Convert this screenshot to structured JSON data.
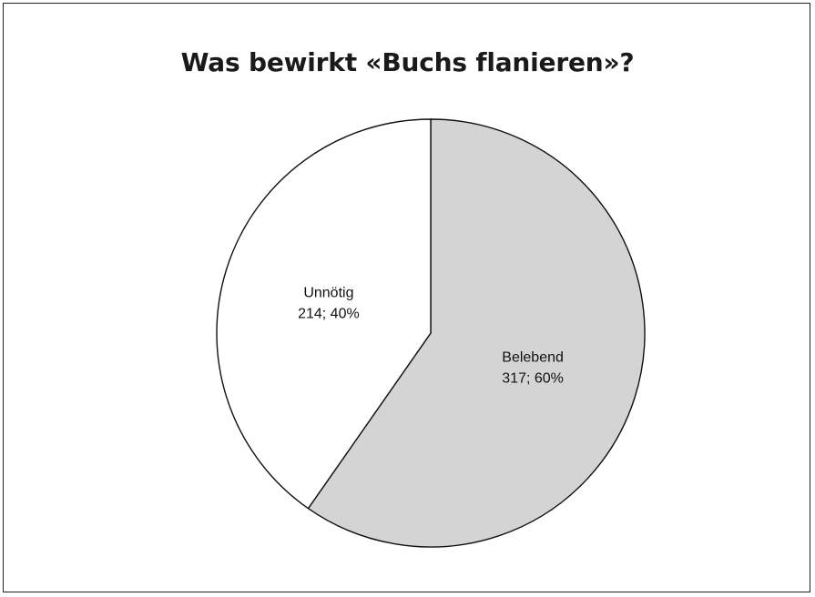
{
  "chart_data": {
    "type": "pie",
    "title": "Was bewirkt «Buchs flanieren»?",
    "slices": [
      {
        "name": "Belebend",
        "value": 317,
        "percent": 60,
        "label_value": "317; 60%",
        "color": "#d4d4d4"
      },
      {
        "name": "Unnötig",
        "value": 214,
        "percent": 40,
        "label_value": "214; 40%",
        "color": "#ffffff"
      }
    ],
    "start_angle_deg": 0,
    "direction": "clockwise",
    "legend": "none"
  }
}
